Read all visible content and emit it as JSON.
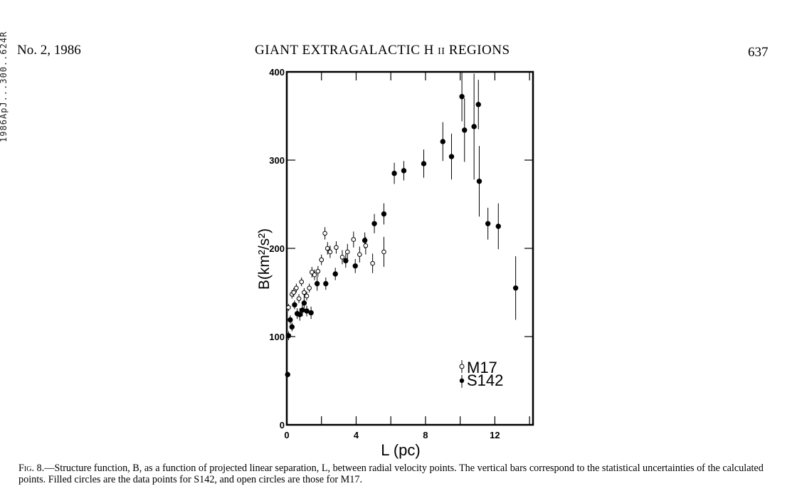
{
  "page": {
    "side_stamp": "1986ApJ...300..624R",
    "issue": "No. 2, 1986",
    "running_title_main": "GIANT EXTRAGALACTIC H",
    "running_title_roman": "II",
    "running_title_tail": "REGIONS",
    "page_number": "637"
  },
  "caption": {
    "label": "Fig. 8.",
    "text": "—Structure function, B, as a function of projected linear separation, L, between radial velocity points. The vertical bars correspond to the statistical uncertainties of the calculated points. Filled circles are the data points for S142, and open circles are those for M17."
  },
  "chart_data": {
    "type": "scatter",
    "xlabel": "L (pc)",
    "ylabel": "B(km²/s²)",
    "xlim": [
      0,
      14.2
    ],
    "ylim": [
      0,
      400
    ],
    "x_ticks": [
      0,
      4,
      8,
      12
    ],
    "y_ticks": [
      0,
      100,
      200,
      300,
      400
    ],
    "grid": false,
    "legend": {
      "position": "bottom-right",
      "entries": [
        "M17",
        "S142"
      ]
    },
    "series": [
      {
        "name": "S142",
        "marker": "filled-circle",
        "points": [
          {
            "x": 0.05,
            "y": 57,
            "err": 0
          },
          {
            "x": 0.1,
            "y": 101,
            "err": 5
          },
          {
            "x": 0.2,
            "y": 119,
            "err": 5
          },
          {
            "x": 0.3,
            "y": 111,
            "err": 5
          },
          {
            "x": 0.45,
            "y": 136,
            "err": 5
          },
          {
            "x": 0.6,
            "y": 126,
            "err": 6
          },
          {
            "x": 0.75,
            "y": 125,
            "err": 7
          },
          {
            "x": 0.9,
            "y": 130,
            "err": 7
          },
          {
            "x": 1.0,
            "y": 138,
            "err": 7
          },
          {
            "x": 1.15,
            "y": 129,
            "err": 6
          },
          {
            "x": 1.4,
            "y": 127,
            "err": 7
          },
          {
            "x": 1.75,
            "y": 160,
            "err": 8
          },
          {
            "x": 2.25,
            "y": 160,
            "err": 7
          },
          {
            "x": 2.8,
            "y": 171,
            "err": 7
          },
          {
            "x": 3.4,
            "y": 186,
            "err": 8
          },
          {
            "x": 3.95,
            "y": 180,
            "err": 8
          },
          {
            "x": 4.5,
            "y": 209,
            "err": 9
          },
          {
            "x": 5.05,
            "y": 228,
            "err": 11
          },
          {
            "x": 5.6,
            "y": 239,
            "err": 12
          },
          {
            "x": 6.2,
            "y": 285,
            "err": 12
          },
          {
            "x": 6.75,
            "y": 288,
            "err": 11
          },
          {
            "x": 7.9,
            "y": 296,
            "err": 16
          },
          {
            "x": 9.0,
            "y": 321,
            "err": 22
          },
          {
            "x": 9.5,
            "y": 304,
            "err": 26
          },
          {
            "x": 10.1,
            "y": 372,
            "err": 28
          },
          {
            "x": 10.25,
            "y": 334,
            "err": 36
          },
          {
            "x": 10.8,
            "y": 338,
            "err": 60
          },
          {
            "x": 11.05,
            "y": 363,
            "err": 28
          },
          {
            "x": 11.1,
            "y": 276,
            "err": 40
          },
          {
            "x": 11.6,
            "y": 228,
            "err": 18
          },
          {
            "x": 12.2,
            "y": 225,
            "err": 26
          },
          {
            "x": 13.2,
            "y": 155,
            "err": 36
          }
        ]
      },
      {
        "name": "M17",
        "marker": "open-circle",
        "points": [
          {
            "x": 0.1,
            "y": 133,
            "err": 4
          },
          {
            "x": 0.3,
            "y": 148,
            "err": 5
          },
          {
            "x": 0.4,
            "y": 150,
            "err": 5
          },
          {
            "x": 0.55,
            "y": 155,
            "err": 5
          },
          {
            "x": 0.7,
            "y": 143,
            "err": 5
          },
          {
            "x": 0.85,
            "y": 162,
            "err": 5
          },
          {
            "x": 1.0,
            "y": 150,
            "err": 5
          },
          {
            "x": 1.15,
            "y": 146,
            "err": 5
          },
          {
            "x": 1.3,
            "y": 155,
            "err": 5
          },
          {
            "x": 1.45,
            "y": 173,
            "err": 6
          },
          {
            "x": 1.6,
            "y": 170,
            "err": 6
          },
          {
            "x": 1.8,
            "y": 174,
            "err": 6
          },
          {
            "x": 2.0,
            "y": 187,
            "err": 6
          },
          {
            "x": 2.2,
            "y": 217,
            "err": 7
          },
          {
            "x": 2.35,
            "y": 200,
            "err": 7
          },
          {
            "x": 2.5,
            "y": 196,
            "err": 7
          },
          {
            "x": 2.85,
            "y": 201,
            "err": 7
          },
          {
            "x": 3.2,
            "y": 190,
            "err": 8
          },
          {
            "x": 3.5,
            "y": 196,
            "err": 9
          },
          {
            "x": 3.85,
            "y": 210,
            "err": 9
          },
          {
            "x": 4.2,
            "y": 193,
            "err": 9
          },
          {
            "x": 4.55,
            "y": 203,
            "err": 10
          },
          {
            "x": 4.95,
            "y": 183,
            "err": 11
          },
          {
            "x": 5.6,
            "y": 196,
            "err": 17
          }
        ]
      }
    ]
  }
}
